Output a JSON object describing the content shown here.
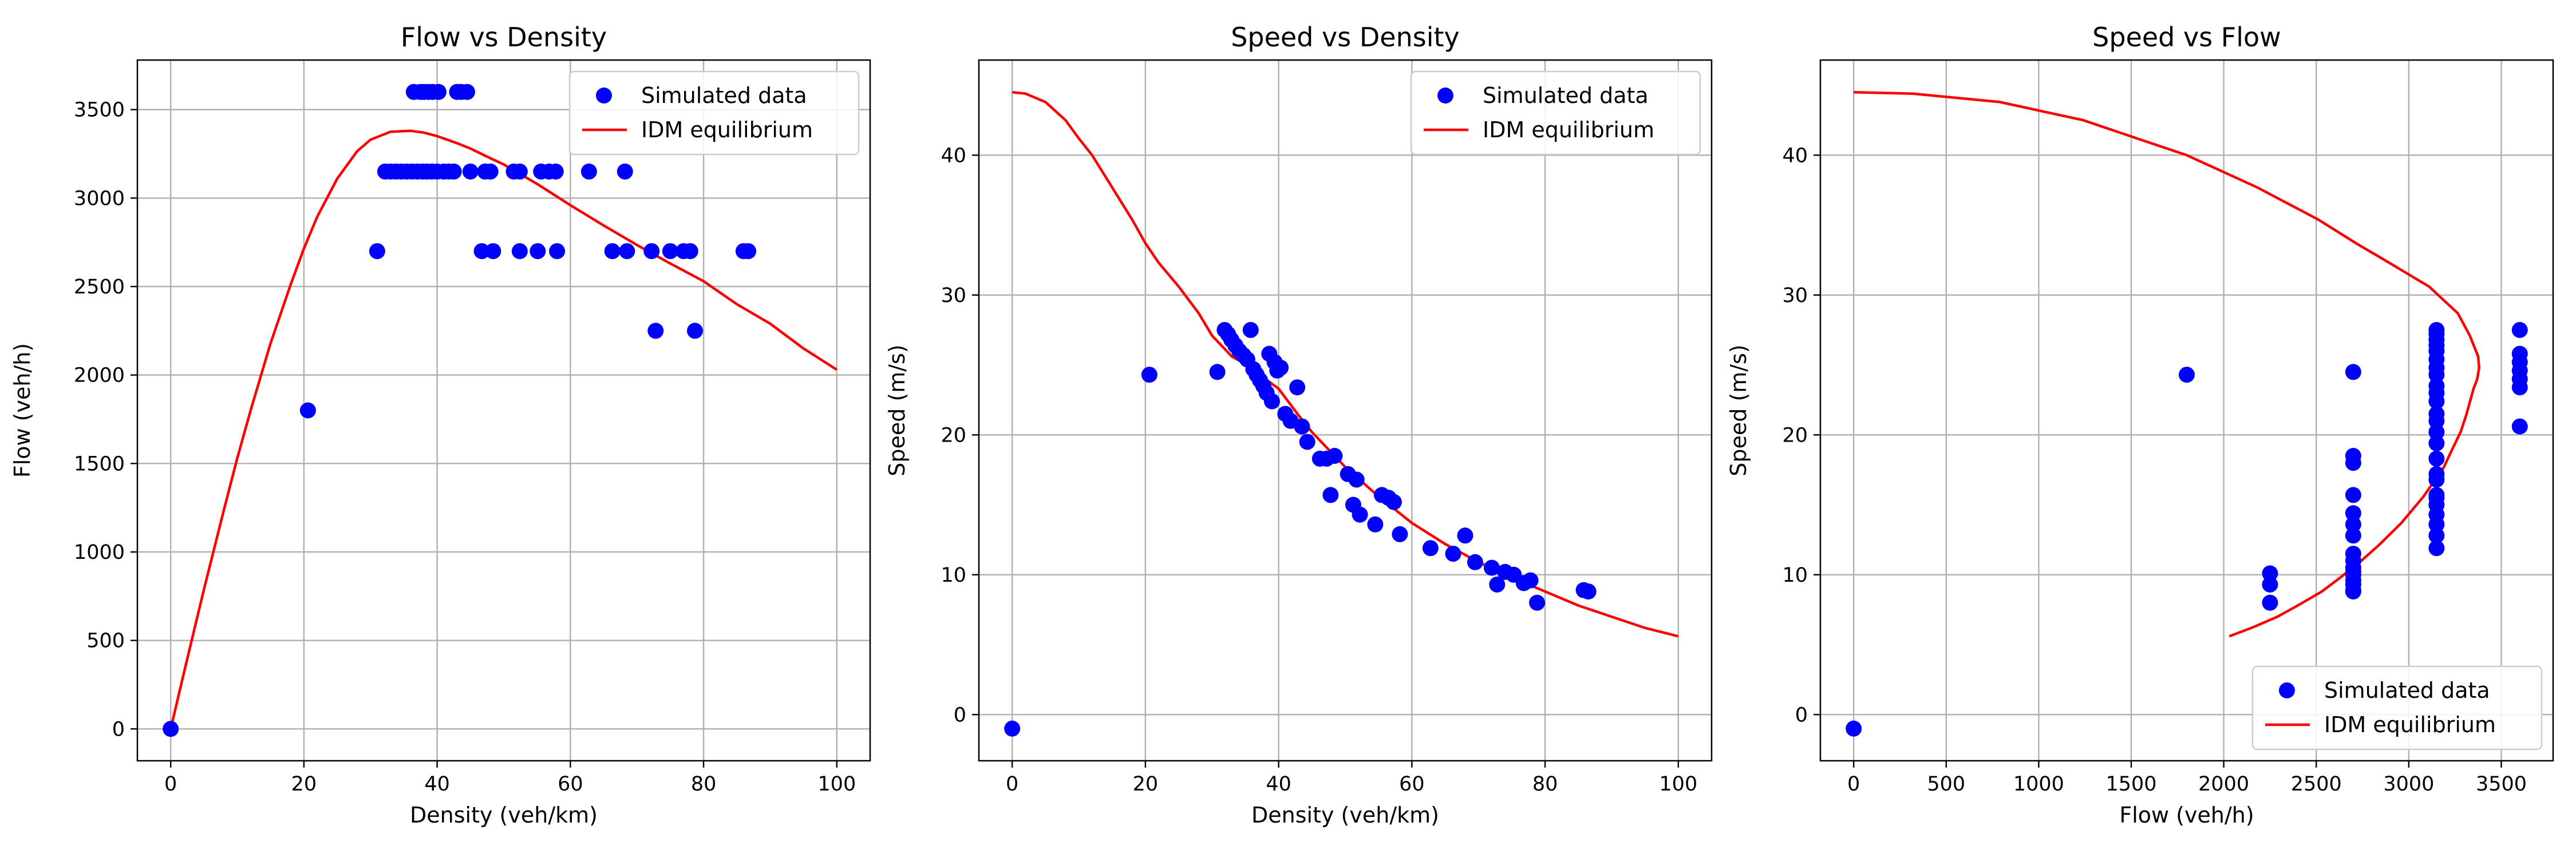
{
  "chart_data": [
    {
      "type": "scatter",
      "title": "Flow vs Density",
      "xlabel": "Density (veh/km)",
      "ylabel": "Flow (veh/h)",
      "xlim": [
        -5,
        105
      ],
      "ylim": [
        -180,
        3780
      ],
      "xticks": [
        0,
        20,
        40,
        60,
        80,
        100
      ],
      "yticks": [
        0,
        500,
        1000,
        1500,
        2000,
        2500,
        3000,
        3500
      ],
      "grid": true,
      "legend_position": "top-right",
      "series": [
        {
          "name": "Simulated data",
          "kind": "scatter",
          "color": "#0000ff",
          "x": [
            0,
            20.6,
            31,
            36.5,
            37.5,
            38,
            38.7,
            39.3,
            40.2,
            43,
            43.6,
            44.5,
            32.2,
            33,
            33.8,
            34.6,
            35.4,
            36.2,
            37,
            37.8,
            38.5,
            39.2,
            40,
            41,
            41.8,
            42.5,
            45,
            47.2,
            48,
            51.5,
            52.4,
            55.6,
            56.8,
            57.8,
            62.8,
            68.2,
            46.7,
            48.4,
            52.4,
            55.1,
            58,
            66.3,
            68.5,
            72.2,
            75,
            77,
            78,
            86,
            86.7,
            72.8,
            78.7
          ],
          "y": [
            0,
            1800,
            2700,
            3600,
            3600,
            3600,
            3600,
            3600,
            3600,
            3600,
            3600,
            3600,
            3150,
            3150,
            3150,
            3150,
            3150,
            3150,
            3150,
            3150,
            3150,
            3150,
            3150,
            3150,
            3150,
            3150,
            3150,
            3150,
            3150,
            3150,
            3150,
            3150,
            3150,
            3150,
            3150,
            3150,
            2700,
            2700,
            2700,
            2700,
            2700,
            2700,
            2700,
            2700,
            2700,
            2700,
            2700,
            2700,
            2700,
            2250,
            2250
          ]
        },
        {
          "name": "IDM equilibrium",
          "kind": "line",
          "color": "#ff0000",
          "x": [
            0,
            2,
            5,
            8,
            10,
            12,
            15,
            18,
            20,
            22,
            25,
            28,
            30,
            33,
            36,
            38,
            40,
            43,
            45,
            48,
            50,
            55,
            60,
            65,
            70,
            75,
            80,
            85,
            90,
            95,
            100
          ],
          "y": [
            0,
            320,
            790,
            1240,
            1530,
            1800,
            2180,
            2510,
            2715,
            2895,
            3110,
            3265,
            3330,
            3375,
            3380,
            3370,
            3350,
            3310,
            3280,
            3225,
            3190,
            3080,
            2960,
            2845,
            2735,
            2630,
            2530,
            2400,
            2290,
            2150,
            2030
          ]
        }
      ]
    },
    {
      "type": "scatter",
      "title": "Speed vs Density",
      "xlabel": "Density (veh/km)",
      "ylabel": "Speed (m/s)",
      "xlim": [
        -5,
        105
      ],
      "ylim": [
        -3.3,
        46.8
      ],
      "xticks": [
        0,
        20,
        40,
        60,
        80,
        100
      ],
      "yticks": [
        0,
        10,
        20,
        30,
        40
      ],
      "grid": true,
      "legend_position": "top-right",
      "series": [
        {
          "name": "Simulated data",
          "kind": "scatter",
          "color": "#0000ff",
          "x": [
            0,
            20.6,
            30.8,
            31.9,
            32.4,
            32.9,
            33.5,
            34.1,
            34.7,
            35.3,
            35.8,
            36.2,
            36.7,
            37.2,
            37.7,
            38.2,
            38.6,
            39,
            39.4,
            39.8,
            40.3,
            41,
            41.8,
            42.8,
            43.5,
            44.3,
            46.2,
            47.2,
            47.8,
            48.4,
            50.4,
            51.2,
            51.7,
            52.2,
            54.5,
            55.5,
            56.5,
            57.3,
            58.2,
            62.8,
            66.2,
            68,
            69.5,
            72,
            72.8,
            74,
            75.3,
            76.8,
            77.8,
            78.8,
            85.8,
            86.5
          ],
          "y": [
            -1,
            24.3,
            24.5,
            27.5,
            27.2,
            26.8,
            26.4,
            26,
            25.7,
            25.4,
            27.5,
            24.7,
            24.3,
            23.9,
            23.5,
            23,
            25.8,
            22.4,
            25.2,
            24.6,
            24.8,
            21.5,
            21,
            23.4,
            20.6,
            19.5,
            18.3,
            18.3,
            15.7,
            18.5,
            17.2,
            15,
            16.8,
            14.3,
            13.6,
            15.7,
            15.5,
            15.2,
            12.9,
            11.9,
            11.5,
            12.8,
            10.9,
            10.5,
            9.3,
            10.2,
            10,
            9.4,
            9.6,
            8,
            8.9,
            8.8
          ]
        },
        {
          "name": "IDM equilibrium",
          "kind": "line",
          "color": "#ff0000",
          "x": [
            0,
            2,
            5,
            8,
            10,
            12,
            15,
            18,
            20,
            22,
            25,
            28,
            30,
            33,
            36,
            38,
            40,
            43,
            45,
            48,
            50,
            55,
            60,
            65,
            70,
            75,
            80,
            85,
            90,
            95,
            100
          ],
          "y": [
            44.5,
            44.4,
            43.8,
            42.5,
            41.2,
            40,
            37.7,
            35.4,
            33.7,
            32.3,
            30.6,
            28.7,
            27.1,
            25.6,
            24.8,
            24,
            23.3,
            21.4,
            20.2,
            18.7,
            17.7,
            15.6,
            13.7,
            12.2,
            10.9,
            9.8,
            8.8,
            7.8,
            7,
            6.2,
            5.6
          ]
        }
      ]
    },
    {
      "type": "scatter",
      "title": "Speed vs Flow",
      "xlabel": "Flow (veh/h)",
      "ylabel": "Speed (m/s)",
      "xlim": [
        -180,
        3780
      ],
      "ylim": [
        -3.3,
        46.8
      ],
      "xticks": [
        0,
        500,
        1000,
        1500,
        2000,
        2500,
        3000,
        3500
      ],
      "yticks": [
        0,
        10,
        20,
        30,
        40
      ],
      "grid": true,
      "legend_position": "bottom-right",
      "series": [
        {
          "name": "Simulated data",
          "kind": "scatter",
          "color": "#0000ff",
          "x": [
            0,
            1800,
            2250,
            2250,
            2250,
            2700,
            2700,
            2700,
            2700,
            2700,
            2700,
            2700,
            2700,
            2700,
            2700,
            2700,
            2700,
            2700,
            2700,
            2700,
            2700,
            3150,
            3150,
            3150,
            3150,
            3150,
            3150,
            3150,
            3150,
            3150,
            3150,
            3150,
            3150,
            3150,
            3150,
            3150,
            3150,
            3150,
            3150,
            3150,
            3150,
            3150,
            3150,
            3150,
            3150,
            3150,
            3600,
            3600,
            3600,
            3600,
            3600,
            3600,
            3600
          ],
          "y": [
            -1,
            24.3,
            10.1,
            9.3,
            8,
            24.5,
            18.5,
            18,
            15.7,
            14.4,
            13.6,
            12.8,
            11.5,
            11,
            10.5,
            10.2,
            10,
            9.6,
            9.3,
            8.9,
            8.8,
            27.5,
            27.2,
            26.8,
            26.4,
            26,
            25.4,
            24.8,
            24.3,
            23.5,
            23,
            22.4,
            21.5,
            21,
            20.2,
            19.4,
            18.3,
            17.2,
            16.8,
            15.5,
            15,
            14.3,
            12.8,
            11.9,
            13.6,
            15.7,
            27.5,
            25.8,
            25.2,
            24.6,
            24,
            23.4,
            20.6
          ]
        },
        {
          "name": "IDM equilibrium",
          "kind": "line",
          "color": "#ff0000",
          "x": [
            0,
            320,
            790,
            1240,
            1530,
            1800,
            2180,
            2510,
            2715,
            2895,
            3110,
            3265,
            3330,
            3375,
            3380,
            3370,
            3350,
            3310,
            3280,
            3225,
            3190,
            3080,
            2960,
            2845,
            2735,
            2630,
            2530,
            2400,
            2290,
            2150,
            2030
          ],
          "y": [
            44.5,
            44.4,
            43.8,
            42.5,
            41.2,
            40,
            37.7,
            35.4,
            33.7,
            32.3,
            30.6,
            28.7,
            27.1,
            25.6,
            24.8,
            24,
            23.3,
            21.4,
            20.2,
            18.7,
            17.7,
            15.6,
            13.7,
            12.2,
            10.9,
            9.8,
            8.8,
            7.8,
            7,
            6.2,
            5.6
          ]
        }
      ]
    }
  ]
}
